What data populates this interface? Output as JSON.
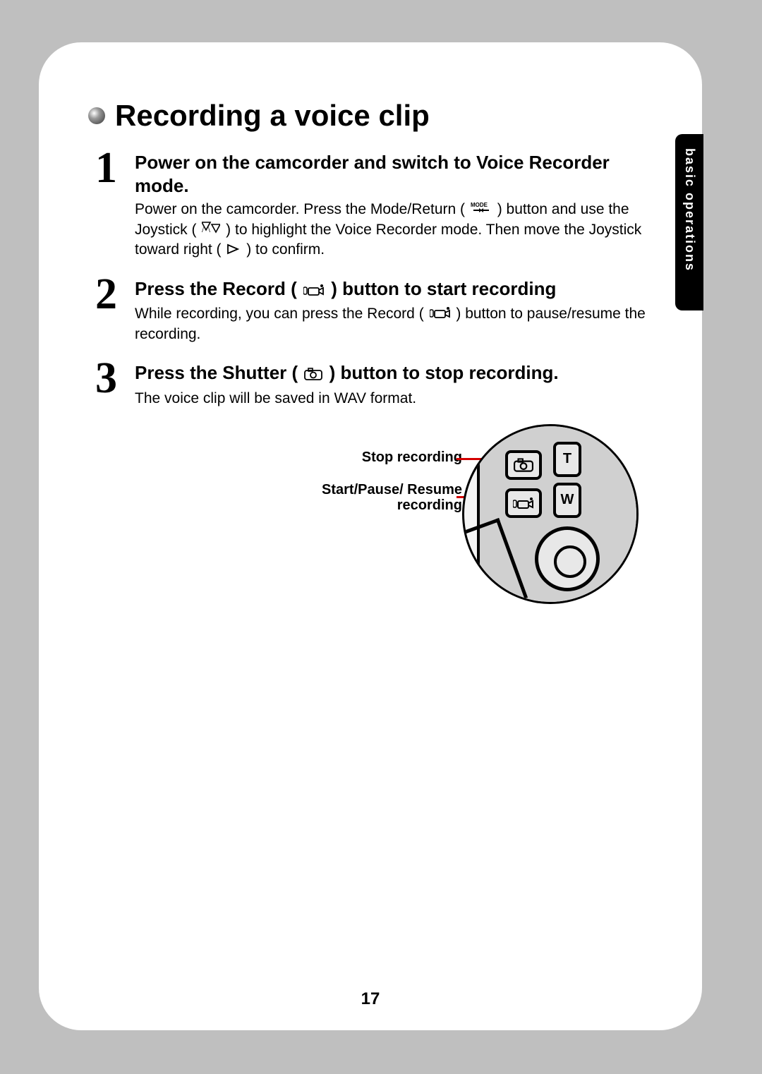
{
  "section_tab": "basic operations",
  "title": "Recording a voice clip",
  "steps": [
    {
      "num": "1",
      "heading": "Power on the camcorder and switch to Voice Recorder mode.",
      "desc_parts": [
        "Power on the camcorder. Press the Mode/Return ( ",
        {
          "icon": "mode"
        },
        " ) button and use the Joystick ( ",
        {
          "icon": "updown"
        },
        " ) to highlight the Voice Recorder mode. Then move the Joystick toward right ( ",
        {
          "icon": "right"
        },
        " ) to confirm."
      ]
    },
    {
      "num": "2",
      "heading_parts": [
        "Press the Record ( ",
        {
          "icon": "record"
        },
        " ) button to start recording"
      ],
      "desc_parts": [
        "While recording, you can press the Record ( ",
        {
          "icon": "record"
        },
        " ) button to pause/resume the recording."
      ]
    },
    {
      "num": "3",
      "heading_parts": [
        "Press the Shutter ( ",
        {
          "icon": "shutter"
        },
        " ) button to stop recording."
      ],
      "desc_parts": [
        "The voice clip will be saved in WAV format."
      ]
    }
  ],
  "diagram": {
    "stop_label": "Stop recording",
    "start_label": "Start/Pause/ Resume recording",
    "t_label": "T",
    "w_label": "W",
    "line_color": "#d40000"
  },
  "page_number": "17",
  "icons_svg": {
    "mode": "<svg width='30' height='18' viewBox='0 0 30 18'><text x='0' y='8' font-size='8' font-weight='bold'>MODE</text><path d='M4 12 l8 0 l0 -2 l4 3 l-4 3 l0 -2 l-8 0 z M26 14 l-8 0 l0 2 l-4 -3 l4 -3 l0 2 l8 0 z' fill='#000'/></svg>",
    "updown": "<svg width='26' height='18' viewBox='0 0 26 18'><path d='M6 15 L0 15 L3 6 L3.4 6 L0.8 15 L6 15 Z M6 15 L12 15 L9 6 L8.6 6 L11.2 15 L6 15 Z' fill='#000'/><path d='M14 4 L26 4 L20 15 Z' fill='none' stroke='#000' stroke-width='1.6'/><path d='M6 4 L0 4 L3 13 Z' fill='none' stroke='none'/><path d='M0 4 L12 4 L6 15 Z' fill='#000' transform='translate(0,0)' opacity='0'/><path d='M0 15 L6 4 L12 15 Z' fill='none' stroke='#000' stroke-width='1.6' transform='translate(0,-1) scale(1,-1) translate(0,-17)'/></svg>",
    "right": "<svg width='20' height='16' viewBox='0 0 20 16'><path d='M2 2 L16 8 L2 14 Z' fill='none' stroke='#000' stroke-width='1.8'/></svg>",
    "record": "<svg width='30' height='18' viewBox='0 0 30 18'><rect x='0' y='5' width='5' height='10' rx='2' fill='none' stroke='#000' stroke-width='1.5'/><rect x='7' y='6' width='15' height='10' rx='2' fill='none' stroke='#000' stroke-width='1.8'/><path d='M22 9 L28 6 L28 15 L22 12' fill='none' stroke='#000' stroke-width='1.8'/><circle cx='26' cy='3' r='2' fill='#000'/></svg>",
    "shutter": "<svg width='26' height='18' viewBox='0 0 26 18'><rect x='1' y='4' width='24' height='13' rx='3' fill='none' stroke='#000' stroke-width='1.8'/><rect x='6' y='1' width='6' height='4' fill='none' stroke='#000' stroke-width='1.6'/><circle cx='13' cy='10.5' r='4' fill='none' stroke='#000' stroke-width='1.8'/></svg>"
  }
}
